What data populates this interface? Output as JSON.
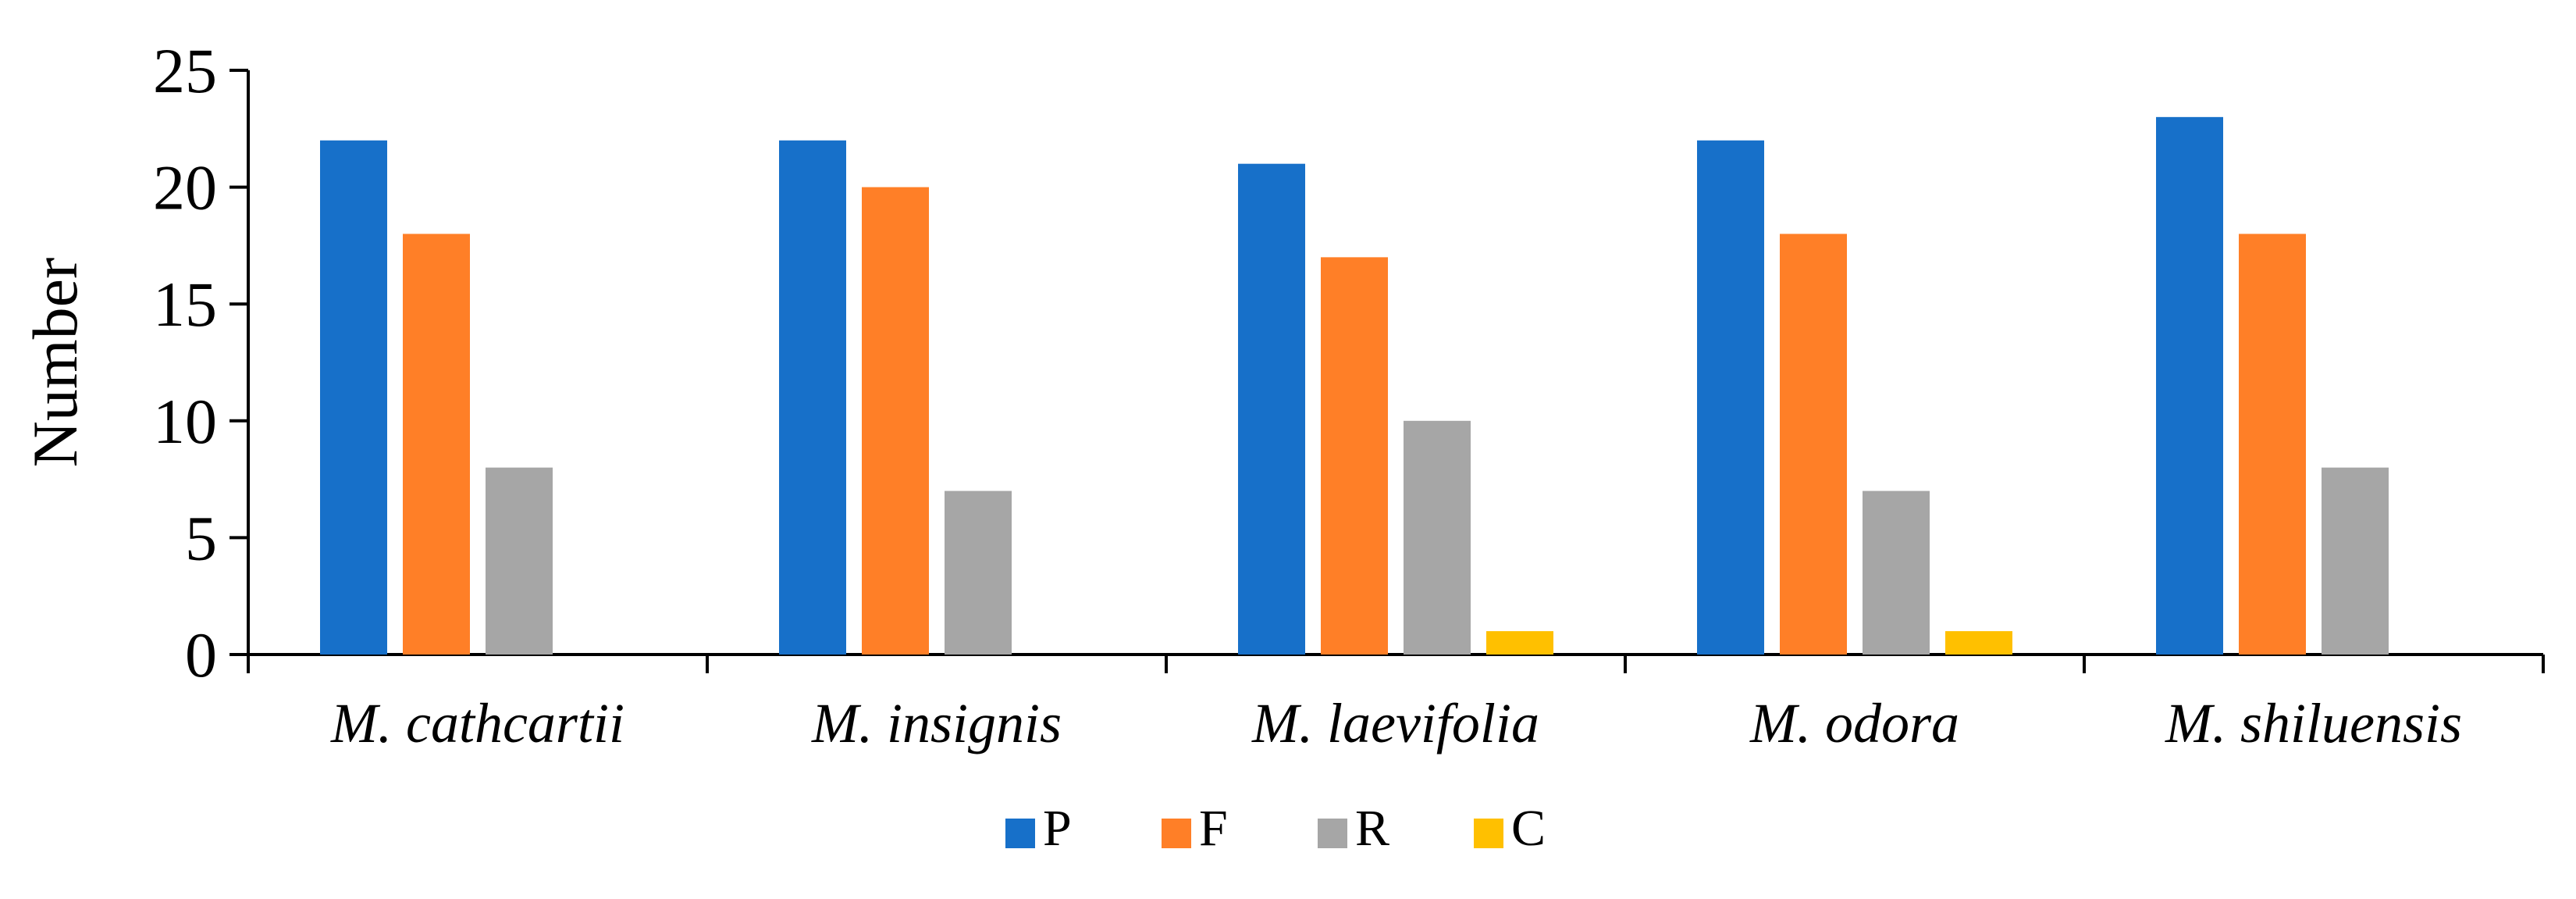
{
  "chart_data": {
    "type": "bar",
    "title": "",
    "xlabel": "",
    "ylabel": "Number",
    "ylim": [
      0,
      25
    ],
    "yticks": [
      0,
      5,
      10,
      15,
      20,
      25
    ],
    "grid": false,
    "legend_position": "bottom",
    "categories": [
      "M. cathcartii",
      "M. insignis",
      "M. laevifolia",
      "M. odora",
      "M. shiluensis"
    ],
    "series": [
      {
        "name": "P",
        "color": "#1770C9",
        "values": [
          22,
          22,
          21,
          22,
          23
        ]
      },
      {
        "name": "F",
        "color": "#FF7F27",
        "values": [
          18,
          20,
          17,
          18,
          18
        ]
      },
      {
        "name": "R",
        "color": "#A6A6A6",
        "values": [
          8,
          7,
          10,
          7,
          8
        ]
      },
      {
        "name": "C",
        "color": "#FFC000",
        "values": [
          0,
          0,
          1,
          1,
          0
        ]
      }
    ]
  }
}
